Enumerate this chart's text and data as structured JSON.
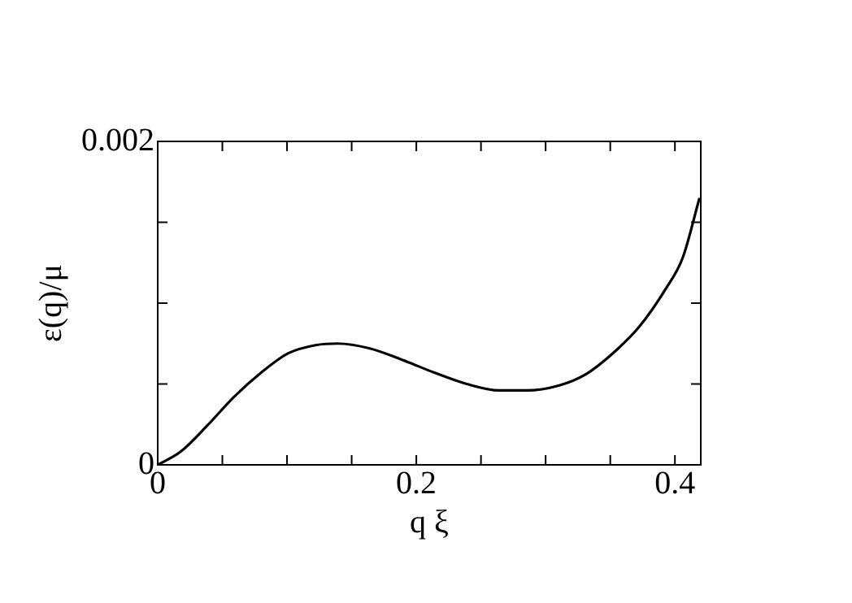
{
  "chart_data": {
    "type": "line",
    "xlabel": "q ξ",
    "ylabel": "ε(q)/μ",
    "series": [
      {
        "color": "#000000",
        "x": [
          0,
          0.0175,
          0.038,
          0.059,
          0.08,
          0.101,
          0.122,
          0.139,
          0.164,
          0.189,
          0.214,
          0.239,
          0.264,
          0.285,
          0.31,
          0.331,
          0.352,
          0.372,
          0.393,
          0.406,
          0.419
        ],
        "values": [
          0,
          8e-05,
          0.00024,
          0.00042,
          0.00057,
          0.00069,
          0.00074,
          0.00075,
          0.00072,
          0.00065,
          0.00057,
          0.0005,
          0.00046,
          0.00046,
          0.00049,
          0.00056,
          0.00069,
          0.00085,
          0.00109,
          0.00128,
          0.00165
        ]
      }
    ],
    "xlim": [
      0,
      0.42
    ],
    "xticks": [
      0,
      {
        "value": 0.05,
        "label": null
      },
      {
        "value": 0.1,
        "label": null
      },
      {
        "value": 0.15,
        "label": null
      },
      0.2,
      {
        "value": 0.25,
        "label": null
      },
      {
        "value": 0.3,
        "label": null
      },
      {
        "value": 0.35,
        "label": null
      },
      0.4
    ],
    "ylim": [
      0,
      0.002
    ],
    "yticks": [
      0,
      {
        "value": 0.0005,
        "label": null
      },
      {
        "value": 0.001,
        "label": null
      },
      {
        "value": 0.0015,
        "label": null
      },
      0.002
    ],
    "grid": false,
    "legend": false,
    "marker": "none",
    "line_style": "solid"
  }
}
